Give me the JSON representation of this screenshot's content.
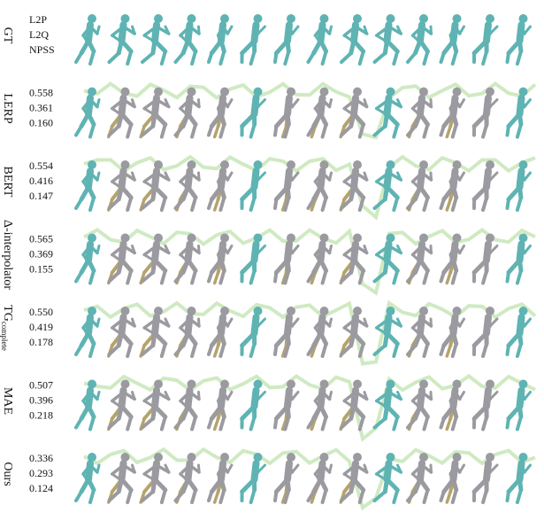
{
  "header": {
    "metric_names": [
      "L2P",
      "L2Q",
      "NPSS"
    ]
  },
  "rows": [
    {
      "label": "GT"
    },
    {
      "label": "LERP",
      "metrics": [
        "0.558",
        "0.361",
        "0.160"
      ]
    },
    {
      "label": "BERT",
      "metrics": [
        "0.554",
        "0.416",
        "0.147"
      ]
    },
    {
      "label": "Δ-interpolator",
      "metrics": [
        "0.565",
        "0.369",
        "0.155"
      ]
    },
    {
      "label": "TG",
      "label_sub": "complete",
      "metrics": [
        "0.550",
        "0.419",
        "0.178"
      ]
    },
    {
      "label": "MAE",
      "metrics": [
        "0.507",
        "0.396",
        "0.218"
      ]
    },
    {
      "label": "Ours",
      "metrics": [
        "0.336",
        "0.293",
        "0.124"
      ]
    }
  ]
}
